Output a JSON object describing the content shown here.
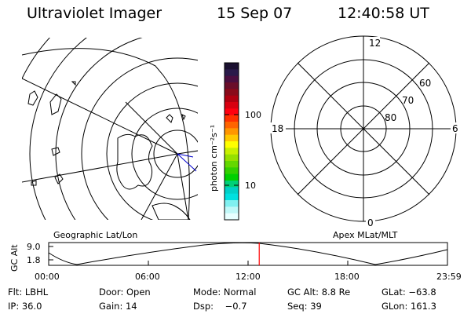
{
  "header": {
    "title": "Ultraviolet Imager",
    "date": "15 Sep 07",
    "time": "12:40:58 UT"
  },
  "colorbar": {
    "unit_label": "photon cm⁻²s⁻¹",
    "ticks": [
      "100",
      "10"
    ],
    "colors": [
      "#1a1030",
      "#2a1a4a",
      "#4a0f40",
      "#6a0e2a",
      "#8a0a1a",
      "#b00010",
      "#d80010",
      "#ff0010",
      "#ff3000",
      "#ff6400",
      "#ff9600",
      "#ffc800",
      "#ffff00",
      "#c8f000",
      "#96e000",
      "#64d800",
      "#32d000",
      "#00d000",
      "#00d078",
      "#00d0c8",
      "#00e0e0",
      "#80f0f0",
      "#c0f8f8",
      "#e8ffff"
    ]
  },
  "left_panel": {
    "caption": "Geographic Lat/Lon"
  },
  "right_panel": {
    "caption": "Apex MLat/MLT",
    "mlt_labels": {
      "top": "12",
      "left": "18",
      "right": "6",
      "bottom": "0"
    },
    "mlat_labels": [
      "60",
      "70",
      "80"
    ]
  },
  "timeline": {
    "ylabel": "GC Alt",
    "yticks": [
      "9.0",
      "1.8"
    ],
    "xticks": [
      "00:00",
      "06:00",
      "12:00",
      "18:00",
      "23:59"
    ],
    "current_fraction": 0.528,
    "marker_color": "#ff0000"
  },
  "info": {
    "row1": [
      "Flt: LBHL",
      "Door: Open",
      "Mode: Normal",
      "GC Alt: 8.8 Re",
      "GLat: −63.8"
    ],
    "row2": [
      "IP: 36.0",
      "Gain: 14",
      "Dsp:    −0.7",
      "Seq: 39",
      "GLon: 161.3"
    ]
  }
}
